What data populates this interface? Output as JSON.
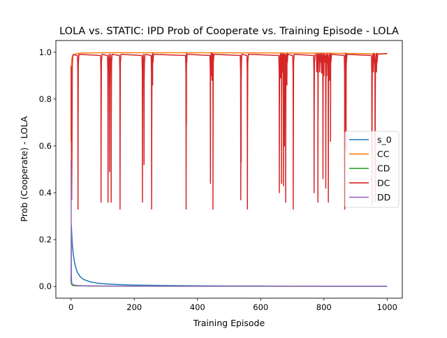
{
  "chart_data": {
    "type": "line",
    "title": "LOLA vs. STATIC: IPD Prob of Cooperate vs. Training Episode - LOLA",
    "xlabel": "Training Episode",
    "ylabel": "Prob (Cooperate) - LOLA",
    "xlim": [
      -48,
      1048
    ],
    "ylim": [
      -0.05,
      1.05
    ],
    "xticks": [
      0,
      200,
      400,
      600,
      800,
      1000
    ],
    "yticks": [
      0.0,
      0.2,
      0.4,
      0.6,
      0.8,
      1.0
    ],
    "xtick_labels": [
      "0",
      "200",
      "400",
      "600",
      "800",
      "1000"
    ],
    "ytick_labels": [
      "0.0",
      "0.2",
      "0.4",
      "0.6",
      "0.8",
      "1.0"
    ],
    "grid": false,
    "legend_position": "center-right",
    "series": [
      {
        "name": "s_0",
        "color": "#1f77b4",
        "x": [
          0,
          1,
          2,
          4,
          6,
          8,
          10,
          14,
          20,
          30,
          40,
          60,
          80,
          100,
          150,
          200,
          300,
          400,
          500,
          600,
          700,
          800,
          900,
          1000
        ],
        "y": [
          0.02,
          0.26,
          0.23,
          0.18,
          0.15,
          0.13,
          0.11,
          0.085,
          0.06,
          0.04,
          0.03,
          0.02,
          0.015,
          0.012,
          0.008,
          0.006,
          0.004,
          0.003,
          0.002,
          0.002,
          0.0015,
          0.001,
          0.001,
          0.001
        ]
      },
      {
        "name": "CC",
        "color": "#ff7f0e",
        "x": [
          0,
          1,
          2,
          3,
          4,
          6,
          8,
          10,
          14,
          20,
          30,
          50,
          100,
          200,
          400,
          600,
          800,
          1000
        ],
        "y": [
          0.62,
          0.94,
          0.965,
          0.975,
          0.98,
          0.985,
          0.988,
          0.99,
          0.993,
          0.995,
          0.996,
          0.997,
          0.998,
          0.998,
          0.998,
          0.997,
          0.996,
          0.993
        ]
      },
      {
        "name": "CD",
        "color": "#2ca02c",
        "x": [
          0,
          1,
          2,
          4,
          10,
          50,
          200,
          500,
          1000
        ],
        "y": [
          0.01,
          0.02,
          0.01,
          0.005,
          0.003,
          0.002,
          0.001,
          0.001,
          0.001
        ]
      },
      {
        "name": "DC",
        "color": "#d62728",
        "baseline": 0.996,
        "start": [
          [
            0,
            0.94
          ],
          [
            2,
            0.37
          ],
          [
            3,
            0.6
          ],
          [
            4,
            0.95
          ],
          [
            6,
            0.99
          ]
        ],
        "dips": [
          [
            22,
            0.33
          ],
          [
            95,
            0.36
          ],
          [
            117,
            0.36
          ],
          [
            122,
            0.49
          ],
          [
            127,
            0.36
          ],
          [
            155,
            0.33
          ],
          [
            226,
            0.36
          ],
          [
            231,
            0.52
          ],
          [
            255,
            0.33
          ],
          [
            258,
            0.86
          ],
          [
            364,
            0.33
          ],
          [
            365,
            0.69
          ],
          [
            441,
            0.44
          ],
          [
            443,
            0.9
          ],
          [
            446,
            0.88
          ],
          [
            449,
            0.33
          ],
          [
            537,
            0.37
          ],
          [
            538,
            0.53
          ],
          [
            558,
            0.33
          ],
          [
            659,
            0.4
          ],
          [
            663,
            0.89
          ],
          [
            666,
            0.44
          ],
          [
            670,
            0.92
          ],
          [
            672,
            0.43
          ],
          [
            675,
            0.6
          ],
          [
            679,
            0.36
          ],
          [
            683,
            0.86
          ],
          [
            703,
            0.33
          ],
          [
            769,
            0.4
          ],
          [
            778,
            0.93
          ],
          [
            781,
            0.36
          ],
          [
            787,
            0.94
          ],
          [
            793,
            0.91
          ],
          [
            797,
            0.46
          ],
          [
            800,
            0.9
          ],
          [
            806,
            0.42
          ],
          [
            809,
            0.9
          ],
          [
            814,
            0.36
          ],
          [
            818,
            0.88
          ],
          [
            821,
            0.62
          ],
          [
            866,
            0.33
          ],
          [
            868,
            0.92
          ],
          [
            870,
            0.58
          ],
          [
            952,
            0.35
          ],
          [
            957,
            0.97
          ],
          [
            962,
            0.36
          ],
          [
            967,
            0.97
          ]
        ]
      },
      {
        "name": "DD",
        "color": "#9467bd",
        "x": [
          0,
          0.3,
          0.6,
          1,
          2,
          3,
          5,
          10,
          20,
          50,
          100,
          300,
          600,
          1000
        ],
        "y": [
          0.54,
          0.48,
          0.28,
          0.05,
          0.015,
          0.012,
          0.01,
          0.006,
          0.004,
          0.003,
          0.002,
          0.001,
          0.001,
          0.001
        ]
      }
    ]
  }
}
